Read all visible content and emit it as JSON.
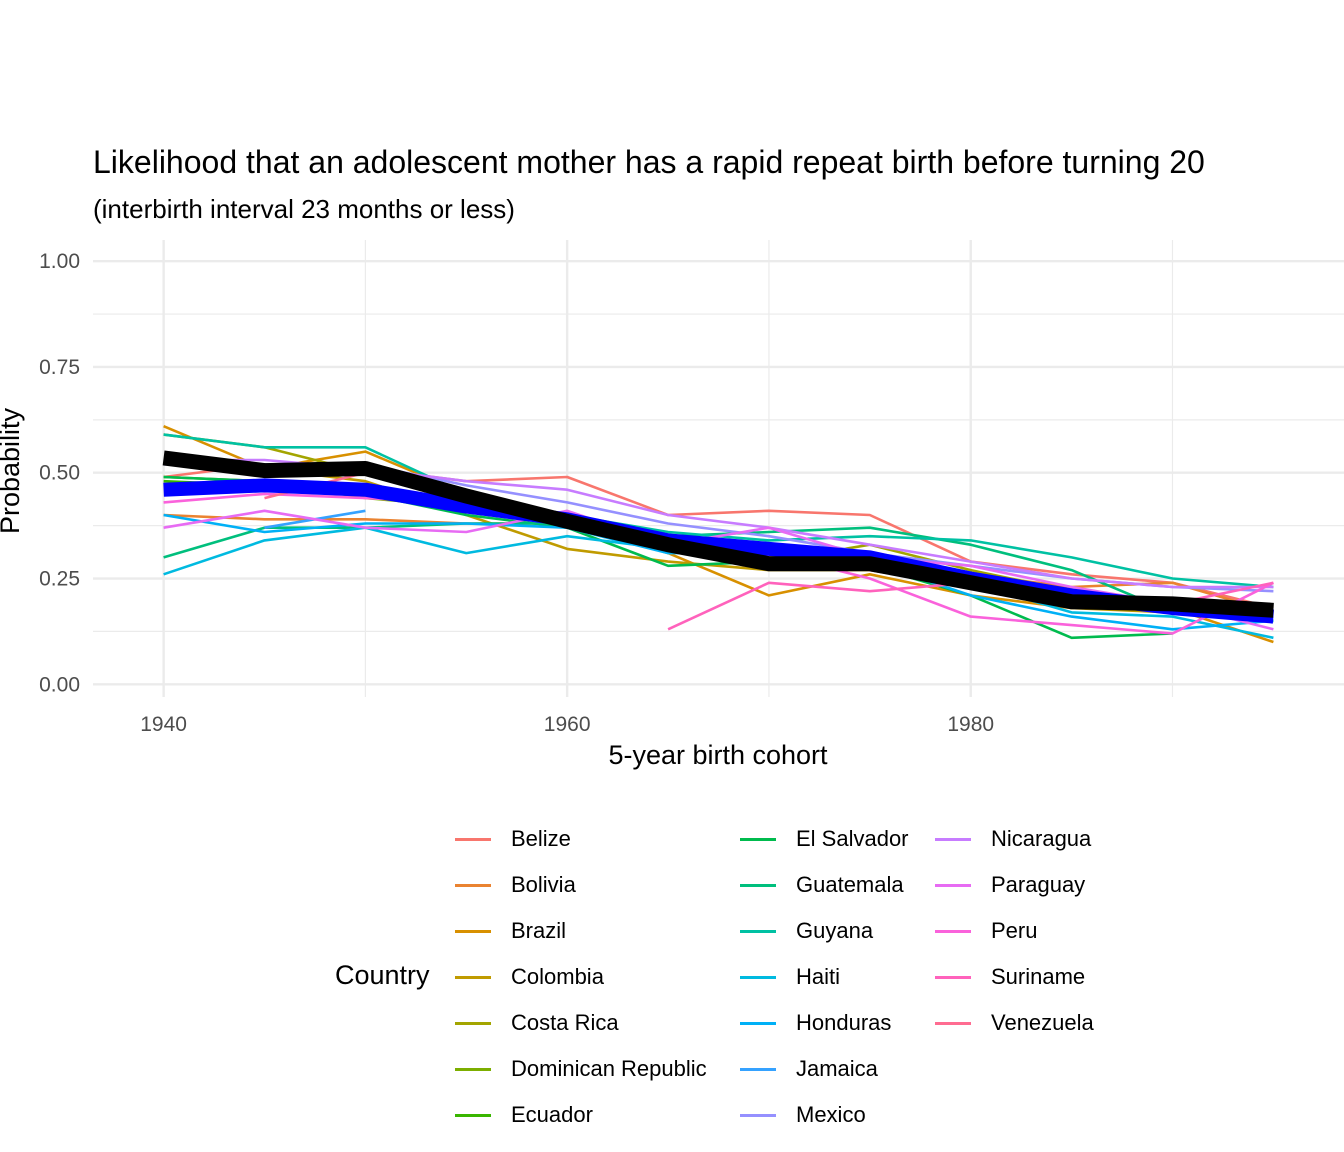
{
  "chart_data": {
    "type": "line",
    "title": "Likelihood that an adolescent mother has a rapid repeat birth before turning 20",
    "subtitle": "(interbirth interval 23 months or less)",
    "xlabel": "5-year birth cohort",
    "ylabel": "Probability",
    "xlim": [
      1936.5,
      1998.5
    ],
    "ylim": [
      -0.03,
      1.05
    ],
    "x_ticks": [
      1940,
      1960,
      1980
    ],
    "x_tick_labels": [
      "1940",
      "1960",
      "1980"
    ],
    "y_ticks": [
      0,
      0.25,
      0.5,
      0.75,
      1
    ],
    "y_tick_labels": [
      "0.00",
      "0.25",
      "0.50",
      "0.75",
      "1.00"
    ],
    "grid": true,
    "legend_title": "Country",
    "legend_position": "bottom",
    "series": [
      {
        "name": "Belize",
        "color": "#F8766D",
        "x": [
          1940,
          1945,
          1950,
          1955,
          1960,
          1965,
          1970,
          1975,
          1980,
          1985,
          1990,
          1995
        ],
        "y": [
          0.49,
          0.52,
          0.51,
          0.48,
          0.49,
          0.4,
          0.41,
          0.4,
          0.29,
          0.26,
          0.24,
          0.18
        ]
      },
      {
        "name": "Bolivia",
        "color": "#EA8331",
        "x": [
          1940,
          1945,
          1950,
          1955,
          1960,
          1965,
          1970,
          1975,
          1980,
          1985,
          1990,
          1995
        ],
        "y": [
          0.4,
          0.39,
          0.39,
          0.38,
          0.38,
          0.34,
          0.3,
          0.3,
          0.26,
          0.23,
          0.24,
          0.17
        ]
      },
      {
        "name": "Brazil",
        "color": "#D89000",
        "x": [
          1940,
          1945,
          1950,
          1955,
          1960,
          1965,
          1970,
          1975,
          1980,
          1985,
          1990,
          1995
        ],
        "y": [
          0.61,
          0.51,
          0.55,
          0.45,
          0.38,
          0.31,
          0.21,
          0.26,
          0.21,
          0.18,
          0.18,
          0.1
        ]
      },
      {
        "name": "Colombia",
        "color": "#C09B00",
        "x": [
          1940,
          1945,
          1950,
          1955,
          1960,
          1965,
          1970,
          1975,
          1980,
          1985,
          1990,
          1995
        ],
        "y": [
          0.53,
          0.51,
          0.48,
          0.4,
          0.32,
          0.29,
          0.27,
          0.27,
          0.23,
          0.18,
          0.17,
          0.15
        ]
      },
      {
        "name": "Costa Rica",
        "color": "#A3A500",
        "x": [
          1940,
          1945,
          1950,
          1955,
          1960,
          1965,
          1970,
          1975,
          1980,
          1985,
          1990,
          1995
        ],
        "y": [
          0.59,
          0.56,
          0.5,
          0.44,
          0.38,
          0.33,
          0.29,
          0.33,
          0.27,
          0.22,
          0.19,
          0.16
        ]
      },
      {
        "name": "Dominican Republic",
        "color": "#7CAE00",
        "x": [
          1940,
          1945,
          1950,
          1955,
          1960,
          1965,
          1970,
          1975,
          1980,
          1985,
          1990,
          1995
        ],
        "y": [
          0.49,
          0.48,
          0.44,
          0.42,
          0.39,
          0.33,
          0.3,
          0.29,
          0.26,
          0.2,
          0.18,
          0.16
        ]
      },
      {
        "name": "Ecuador",
        "color": "#39B600",
        "x": [
          1940,
          1945,
          1950,
          1955,
          1960,
          1965,
          1970,
          1975,
          1980,
          1985,
          1990,
          1995
        ],
        "y": [
          0.48,
          0.47,
          0.45,
          0.43,
          0.38,
          0.33,
          0.31,
          0.29,
          0.25,
          0.19,
          0.17,
          0.15
        ]
      },
      {
        "name": "El Salvador",
        "color": "#00BB4E",
        "x": [
          1940,
          1945,
          1950,
          1955,
          1960,
          1965,
          1970,
          1975,
          1980,
          1985,
          1990
        ],
        "y": [
          0.49,
          0.48,
          0.45,
          0.4,
          0.37,
          0.28,
          0.29,
          0.28,
          0.21,
          0.11,
          0.12
        ]
      },
      {
        "name": "Guatemala",
        "color": "#00BF7D",
        "x": [
          1940,
          1945,
          1950,
          1955,
          1960,
          1965,
          1970,
          1975,
          1980,
          1985,
          1990,
          1995
        ],
        "y": [
          0.3,
          0.37,
          0.37,
          0.38,
          0.38,
          0.35,
          0.36,
          0.37,
          0.33,
          0.27,
          0.17,
          0.17
        ]
      },
      {
        "name": "Guyana",
        "color": "#00C1A3",
        "x": [
          1940,
          1945,
          1950,
          1955,
          1960,
          1965,
          1970,
          1975,
          1980,
          1985,
          1990,
          1995
        ],
        "y": [
          0.59,
          0.56,
          0.56,
          0.45,
          0.4,
          0.36,
          0.34,
          0.35,
          0.34,
          0.3,
          0.25,
          0.23
        ]
      },
      {
        "name": "Haiti",
        "color": "#00BAE0",
        "x": [
          1940,
          1945,
          1950,
          1955,
          1960,
          1965,
          1970,
          1975,
          1980,
          1985,
          1990,
          1995
        ],
        "y": [
          0.26,
          0.34,
          0.37,
          0.31,
          0.35,
          0.32,
          0.32,
          0.29,
          0.24,
          0.17,
          0.16,
          0.11
        ]
      },
      {
        "name": "Honduras",
        "color": "#00B0F6",
        "x": [
          1940,
          1945,
          1950,
          1955,
          1960,
          1965,
          1970,
          1975,
          1980,
          1985,
          1990,
          1995
        ],
        "y": [
          0.4,
          0.36,
          0.38,
          0.38,
          0.37,
          0.31,
          0.31,
          0.29,
          0.21,
          0.16,
          0.13,
          0.15
        ]
      },
      {
        "name": "Jamaica",
        "color": "#35A2FF",
        "x": [
          1945,
          1950
        ],
        "y": [
          0.37,
          0.41
        ]
      },
      {
        "name": "Mexico",
        "color": "#9590FF",
        "x": [
          1940,
          1945,
          1950,
          1955,
          1960,
          1965,
          1970,
          1975,
          1980,
          1985,
          1990,
          1995
        ],
        "y": [
          0.52,
          0.52,
          0.52,
          0.47,
          0.43,
          0.38,
          0.35,
          0.31,
          0.28,
          0.25,
          0.23,
          0.22
        ]
      },
      {
        "name": "Nicaragua",
        "color": "#C77CFF",
        "x": [
          1940,
          1945,
          1950,
          1955,
          1960,
          1965,
          1970,
          1975,
          1980,
          1985,
          1990,
          1995
        ],
        "y": [
          0.53,
          0.53,
          0.51,
          0.48,
          0.46,
          0.4,
          0.37,
          0.33,
          0.29,
          0.25,
          0.23,
          0.23
        ]
      },
      {
        "name": "Paraguay",
        "color": "#E76BF3",
        "x": [
          1940,
          1945,
          1950,
          1955,
          1960,
          1965,
          1970,
          1975,
          1980,
          1985,
          1990,
          1995
        ],
        "y": [
          0.37,
          0.41,
          0.37,
          0.36,
          0.41,
          0.33,
          0.37,
          0.3,
          0.28,
          0.23,
          0.19,
          0.13
        ]
      },
      {
        "name": "Peru",
        "color": "#FA62DB",
        "x": [
          1940,
          1945,
          1950,
          1955,
          1960,
          1965,
          1970,
          1975,
          1980,
          1985,
          1990,
          1995
        ],
        "y": [
          0.43,
          0.45,
          0.44,
          0.43,
          0.4,
          0.33,
          0.31,
          0.25,
          0.16,
          0.14,
          0.12,
          0.24
        ]
      },
      {
        "name": "Suriname",
        "color": "#FF62BC",
        "x": [
          1965,
          1970,
          1975,
          1980,
          1985,
          1990,
          1995
        ],
        "y": [
          0.13,
          0.24,
          0.22,
          0.24,
          0.19,
          0.19,
          0.24
        ]
      },
      {
        "name": "Venezuela",
        "color": "#FF6C91",
        "x": [
          1945,
          1950,
          1955,
          1960,
          1965,
          1970,
          1975,
          1980,
          1985,
          1990,
          1995
        ],
        "y": [
          0.44,
          0.5,
          0.45,
          0.4,
          0.34,
          0.3,
          0.27,
          0.23,
          0.19,
          0.19,
          0.17
        ]
      }
    ],
    "summary_lines": [
      {
        "color": "#0000FF",
        "x": [
          1940,
          1945,
          1950,
          1955,
          1960,
          1965,
          1970,
          1975,
          1980,
          1985,
          1990,
          1995
        ],
        "y": [
          0.46,
          0.47,
          0.46,
          0.42,
          0.39,
          0.34,
          0.32,
          0.3,
          0.25,
          0.21,
          0.18,
          0.16
        ]
      },
      {
        "color": "#000000",
        "x": [
          1940,
          1945,
          1950,
          1955,
          1960,
          1965,
          1970,
          1975,
          1980,
          1985,
          1990,
          1995
        ],
        "y": [
          0.535,
          0.505,
          0.51,
          0.445,
          0.385,
          0.33,
          0.285,
          0.285,
          0.24,
          0.195,
          0.19,
          0.175
        ]
      }
    ]
  }
}
